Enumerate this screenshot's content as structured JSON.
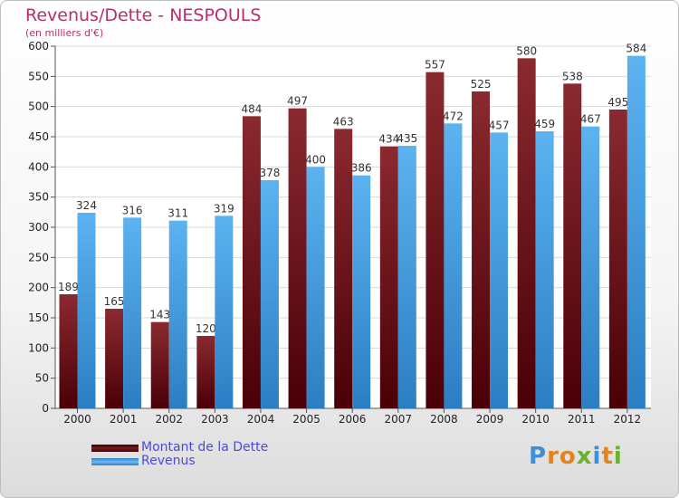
{
  "chart_data": {
    "type": "bar",
    "title": "Revenus/Dette - NESPOULS",
    "subtitle": "(en milliers d'€)",
    "categories": [
      "2000",
      "2001",
      "2002",
      "2003",
      "2004",
      "2005",
      "2006",
      "2007",
      "2008",
      "2009",
      "2010",
      "2011",
      "2012"
    ],
    "series": [
      {
        "name": "Montant de la Dette",
        "values": [
          189,
          165,
          143,
          120,
          484,
          497,
          463,
          434,
          557,
          525,
          580,
          538,
          495
        ],
        "color": "#6e0e14"
      },
      {
        "name": "Revenus",
        "values": [
          324,
          316,
          311,
          319,
          378,
          400,
          386,
          435,
          472,
          457,
          459,
          467,
          584
        ],
        "color": "#4da6e8"
      }
    ],
    "yticks": [
      0,
      50,
      100,
      150,
      200,
      250,
      300,
      350,
      400,
      450,
      500,
      550,
      600
    ],
    "ylim": [
      0,
      600
    ],
    "grid": true,
    "legend": "bottom-left"
  },
  "logo": {
    "letters": [
      {
        "ch": "P",
        "color": "#3f8fd6"
      },
      {
        "ch": "r",
        "color": "#e2831e"
      },
      {
        "ch": "o",
        "color": "#e2831e"
      },
      {
        "ch": "x",
        "color": "#69b32b"
      },
      {
        "ch": "i",
        "color": "#3f8fd6"
      },
      {
        "ch": "t",
        "color": "#e2831e"
      },
      {
        "ch": "i",
        "color": "#69b32b"
      }
    ]
  }
}
